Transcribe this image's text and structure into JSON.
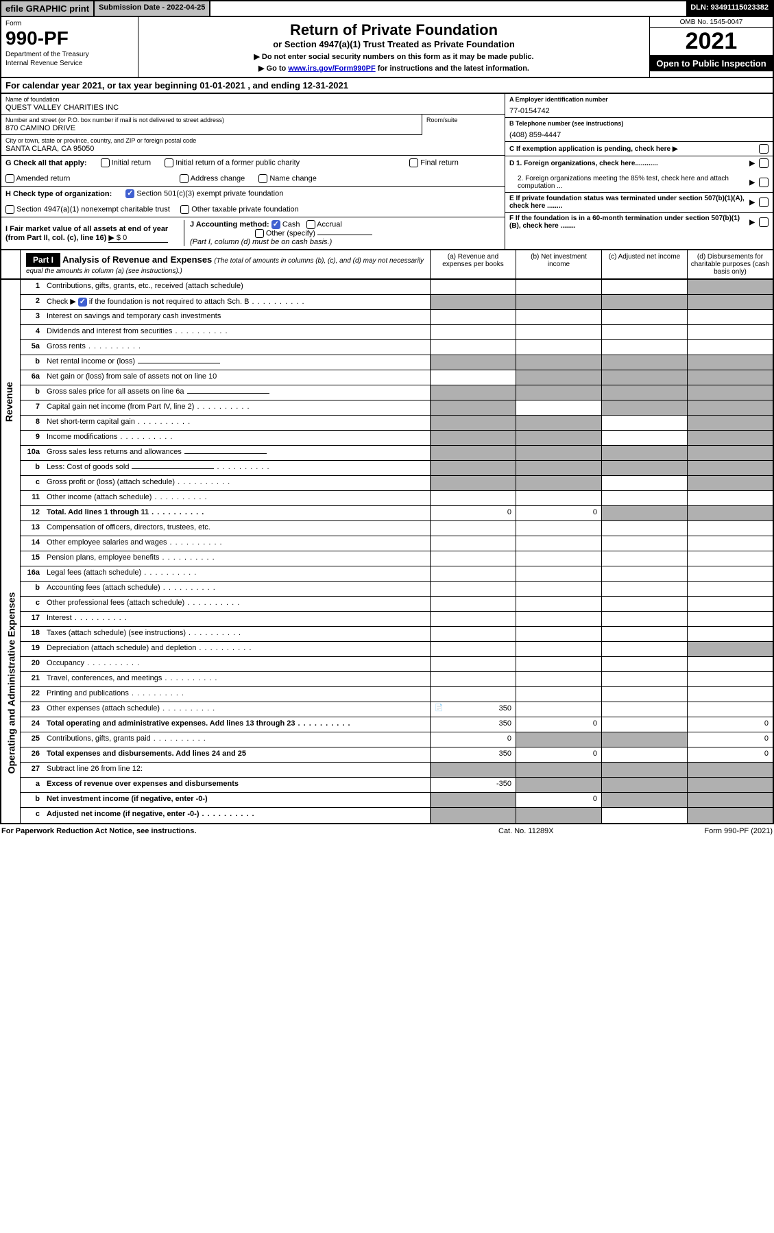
{
  "top": {
    "efile": "efile GRAPHIC print",
    "submission_label": "Submission Date - ",
    "submission_date": "2022-04-25",
    "dln_label": "DLN: ",
    "dln": "93491115023382"
  },
  "header": {
    "form_word": "Form",
    "form_number": "990-PF",
    "dept1": "Department of the Treasury",
    "dept2": "Internal Revenue Service",
    "title": "Return of Private Foundation",
    "subtitle": "or Section 4947(a)(1) Trust Treated as Private Foundation",
    "inst1": "▶ Do not enter social security numbers on this form as it may be made public.",
    "inst2_pre": "▶ Go to ",
    "inst2_link": "www.irs.gov/Form990PF",
    "inst2_post": " for instructions and the latest information.",
    "omb": "OMB No. 1545-0047",
    "year": "2021",
    "open": "Open to Public Inspection"
  },
  "cal_year": "For calendar year 2021, or tax year beginning 01-01-2021          , and ending 12-31-2021",
  "entity": {
    "name_lbl": "Name of foundation",
    "name": "QUEST VALLEY CHARITIES INC",
    "addr_lbl": "Number and street (or P.O. box number if mail is not delivered to street address)",
    "addr": "870 CAMINO DRIVE",
    "room_lbl": "Room/suite",
    "city_lbl": "City or town, state or province, country, and ZIP or foreign postal code",
    "city": "SANTA CLARA, CA  95050",
    "ein_lbl": "A Employer identification number",
    "ein": "77-0154742",
    "phone_lbl": "B Telephone number (see instructions)",
    "phone": "(408) 859-4447",
    "c_lbl": "C If exemption application is pending, check here",
    "d1": "D 1. Foreign organizations, check here............",
    "d2": "2. Foreign organizations meeting the 85% test, check here and attach computation ...",
    "e": "E   If private foundation status was terminated under section 507(b)(1)(A), check here ........",
    "f": "F   If the foundation is in a 60-month termination under section 507(b)(1)(B), check here ........"
  },
  "checks": {
    "g_label": "G Check all that apply:",
    "g1": "Initial return",
    "g2": "Initial return of a former public charity",
    "g3": "Final return",
    "g4": "Amended return",
    "g5": "Address change",
    "g6": "Name change",
    "h_label": "H Check type of organization:",
    "h1": "Section 501(c)(3) exempt private foundation",
    "h2": "Section 4947(a)(1) nonexempt charitable trust",
    "h3": "Other taxable private foundation",
    "i_label": "I Fair market value of all assets at end of year (from Part II, col. (c), line 16)",
    "i_val": "▶ $ 0",
    "j_label": "J Accounting method:",
    "j1": "Cash",
    "j2": "Accrual",
    "j3": "Other (specify)",
    "j_note": "(Part I, column (d) must be on cash basis.)"
  },
  "part1": {
    "label": "Part I",
    "title": "Analysis of Revenue and Expenses",
    "sub": "(The total of amounts in columns (b), (c), and (d) may not necessarily equal the amounts in column (a) (see instructions).)",
    "col_a": "(a)   Revenue and expenses per books",
    "col_b": "(b)   Net investment income",
    "col_c": "(c)   Adjusted net income",
    "col_d": "(d)   Disbursements for charitable purposes (cash basis only)"
  },
  "side": {
    "rev": "Revenue",
    "exp": "Operating and Administrative Expenses"
  },
  "rows": [
    {
      "n": "1",
      "d": "Contributions, gifts, grants, etc., received (attach schedule)",
      "sh": [
        0,
        0,
        0,
        1
      ]
    },
    {
      "n": "2",
      "d": "Check ▶ ☑ if the foundation is not required to attach Sch. B",
      "dots": 1,
      "sh": [
        1,
        1,
        1,
        1
      ],
      "checked": true
    },
    {
      "n": "3",
      "d": "Interest on savings and temporary cash investments"
    },
    {
      "n": "4",
      "d": "Dividends and interest from securities",
      "dots": 1
    },
    {
      "n": "5a",
      "d": "Gross rents",
      "dots": 1
    },
    {
      "n": "b",
      "d": "Net rental income or (loss)",
      "sh": [
        1,
        1,
        1,
        1
      ],
      "inline": 1
    },
    {
      "n": "6a",
      "d": "Net gain or (loss) from sale of assets not on line 10",
      "sh": [
        0,
        1,
        1,
        1
      ]
    },
    {
      "n": "b",
      "d": "Gross sales price for all assets on line 6a",
      "sh": [
        1,
        1,
        1,
        1
      ],
      "inline": 1
    },
    {
      "n": "7",
      "d": "Capital gain net income (from Part IV, line 2)",
      "dots": 1,
      "sh": [
        1,
        0,
        1,
        1
      ]
    },
    {
      "n": "8",
      "d": "Net short-term capital gain",
      "dots": 1,
      "sh": [
        1,
        1,
        0,
        1
      ]
    },
    {
      "n": "9",
      "d": "Income modifications",
      "dots": 1,
      "sh": [
        1,
        1,
        0,
        1
      ]
    },
    {
      "n": "10a",
      "d": "Gross sales less returns and allowances",
      "sh": [
        1,
        1,
        1,
        1
      ],
      "inline": 1
    },
    {
      "n": "b",
      "d": "Less: Cost of goods sold",
      "dots": 1,
      "sh": [
        1,
        1,
        1,
        1
      ],
      "inline": 1
    },
    {
      "n": "c",
      "d": "Gross profit or (loss) (attach schedule)",
      "dots": 1,
      "sh": [
        1,
        1,
        0,
        1
      ]
    },
    {
      "n": "11",
      "d": "Other income (attach schedule)",
      "dots": 1
    },
    {
      "n": "12",
      "d": "Total. Add lines 1 through 11",
      "dots": 1,
      "b": 1,
      "a": "0",
      "bv": "0",
      "sh": [
        0,
        0,
        1,
        1
      ]
    },
    {
      "n": "13",
      "d": "Compensation of officers, directors, trustees, etc."
    },
    {
      "n": "14",
      "d": "Other employee salaries and wages",
      "dots": 1
    },
    {
      "n": "15",
      "d": "Pension plans, employee benefits",
      "dots": 1
    },
    {
      "n": "16a",
      "d": "Legal fees (attach schedule)",
      "dots": 1
    },
    {
      "n": "b",
      "d": "Accounting fees (attach schedule)",
      "dots": 1
    },
    {
      "n": "c",
      "d": "Other professional fees (attach schedule)",
      "dots": 1
    },
    {
      "n": "17",
      "d": "Interest",
      "dots": 1
    },
    {
      "n": "18",
      "d": "Taxes (attach schedule) (see instructions)",
      "dots": 1
    },
    {
      "n": "19",
      "d": "Depreciation (attach schedule) and depletion",
      "dots": 1,
      "sh": [
        0,
        0,
        0,
        1
      ]
    },
    {
      "n": "20",
      "d": "Occupancy",
      "dots": 1
    },
    {
      "n": "21",
      "d": "Travel, conferences, and meetings",
      "dots": 1
    },
    {
      "n": "22",
      "d": "Printing and publications",
      "dots": 1
    },
    {
      "n": "23",
      "d": "Other expenses (attach schedule)",
      "dots": 1,
      "a": "350",
      "ico": 1
    },
    {
      "n": "24",
      "d": "Total operating and administrative expenses. Add lines 13 through 23",
      "dots": 1,
      "b": 1,
      "a": "350",
      "bv": "0",
      "dv": "0"
    },
    {
      "n": "25",
      "d": "Contributions, gifts, grants paid",
      "dots": 1,
      "a": "0",
      "sh": [
        0,
        1,
        1,
        0
      ],
      "dv": "0"
    },
    {
      "n": "26",
      "d": "Total expenses and disbursements. Add lines 24 and 25",
      "b": 1,
      "a": "350",
      "bv": "0",
      "dv": "0"
    },
    {
      "n": "27",
      "d": "Subtract line 26 from line 12:",
      "sh": [
        1,
        1,
        1,
        1
      ]
    },
    {
      "n": "a",
      "d": "Excess of revenue over expenses and disbursements",
      "b": 1,
      "a": "-350",
      "sh": [
        0,
        1,
        1,
        1
      ]
    },
    {
      "n": "b",
      "d": "Net investment income (if negative, enter -0-)",
      "b": 1,
      "bv": "0",
      "sh": [
        1,
        0,
        1,
        1
      ]
    },
    {
      "n": "c",
      "d": "Adjusted net income (if negative, enter -0-)",
      "b": 1,
      "dots": 1,
      "sh": [
        1,
        1,
        0,
        1
      ]
    }
  ],
  "footer": {
    "left": "For Paperwork Reduction Act Notice, see instructions.",
    "mid": "Cat. No. 11289X",
    "right": "Form 990-PF (2021)"
  },
  "colors": {
    "shade": "#b0b0b0",
    "header_bg": "#000000",
    "link": "#0000cc"
  }
}
